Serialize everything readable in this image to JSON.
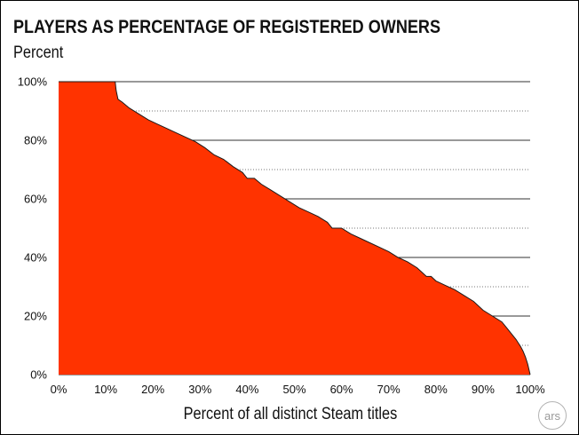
{
  "chart_data": {
    "type": "area",
    "title": "PLAYERS AS PERCENTAGE OF REGISTERED OWNERS",
    "subtitle": "Percent",
    "xlabel": "Percent of all distinct Steam titles",
    "ylabel": "Percent",
    "xlim": [
      0,
      100
    ],
    "ylim": [
      0,
      100
    ],
    "x_ticks": [
      "0%",
      "10%",
      "20%",
      "30%",
      "40%",
      "50%",
      "60%",
      "70%",
      "80%",
      "90%",
      "100%"
    ],
    "y_ticks": [
      "0%",
      "20%",
      "40%",
      "60%",
      "80%",
      "100%"
    ],
    "y_minor_gridlines": [
      10,
      30,
      50,
      70,
      90
    ],
    "grid": true,
    "fill_color": "#ff3300",
    "series": [
      {
        "x": [
          0,
          12,
          12.2,
          12.6,
          13.5,
          15,
          17,
          19,
          21,
          23,
          25,
          27,
          29,
          31,
          33,
          35,
          37,
          39,
          40,
          41.5,
          43,
          45,
          47,
          49,
          51,
          53,
          55,
          57,
          58,
          60,
          62,
          64,
          66,
          68,
          70,
          72,
          74,
          76,
          77,
          78,
          79,
          80,
          82,
          84,
          86,
          88,
          90,
          92,
          94,
          95,
          96,
          97,
          98,
          98.5,
          99,
          99.5,
          100
        ],
        "y": [
          100,
          100,
          97,
          94,
          93,
          91,
          89,
          87,
          85.5,
          84,
          82.5,
          81,
          79.5,
          77.5,
          75,
          73.5,
          71,
          69,
          67,
          67,
          65,
          63,
          61,
          59,
          57,
          55.5,
          54,
          52,
          50,
          50,
          48,
          46.5,
          45,
          43.5,
          42,
          40,
          38.5,
          36.5,
          35,
          33.5,
          33.5,
          32,
          30.5,
          29,
          27,
          25,
          22,
          20,
          18,
          16,
          14,
          12,
          9.5,
          8,
          6,
          3.5,
          0
        ]
      }
    ]
  },
  "watermark": {
    "text": "ars"
  }
}
